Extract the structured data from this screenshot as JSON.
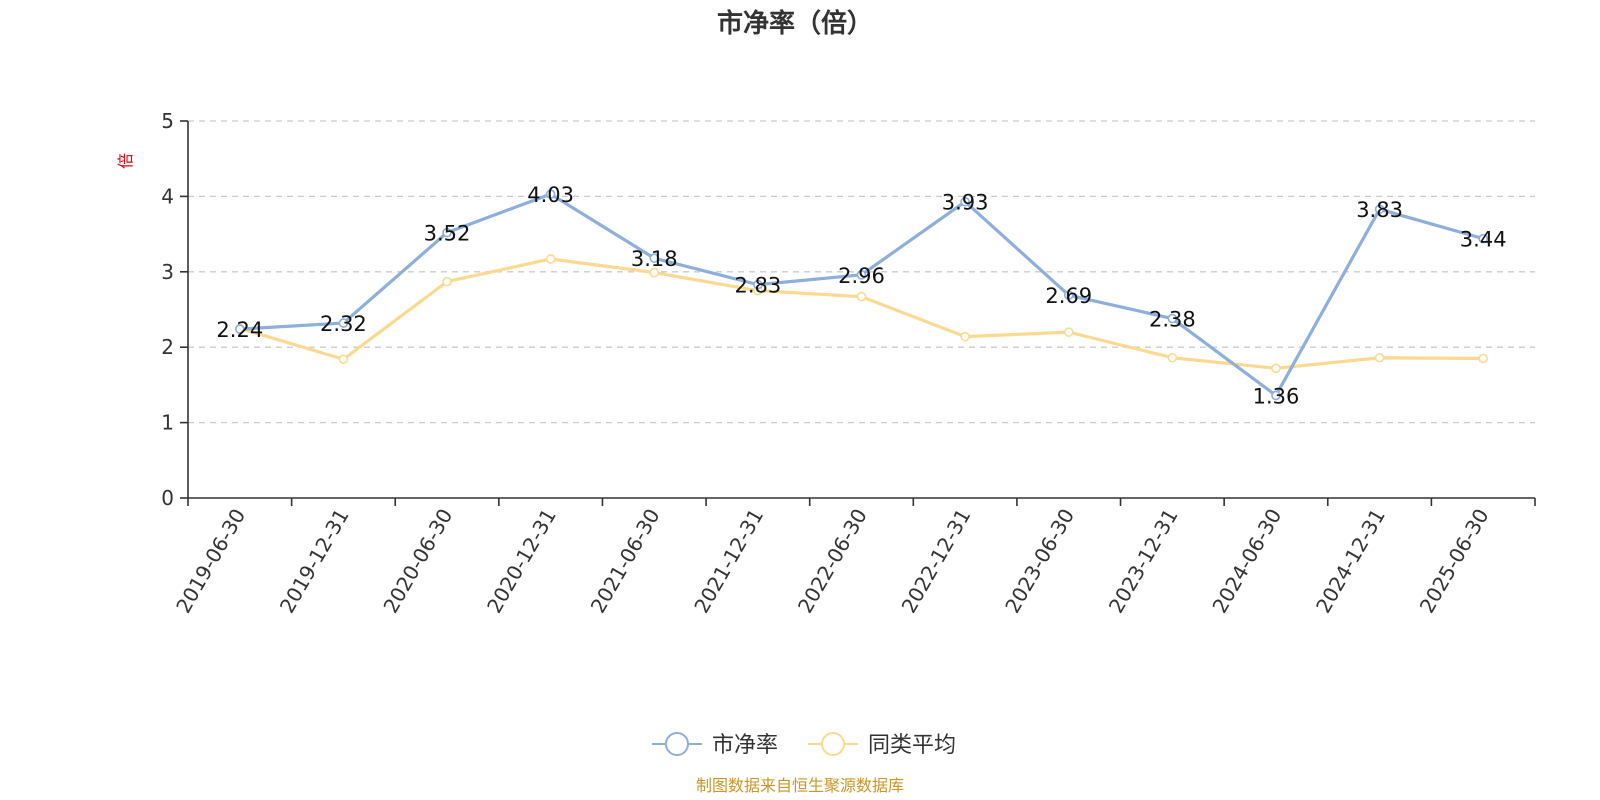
{
  "chart_data": {
    "type": "line",
    "title": "市净率（倍）",
    "ylabel": "倍",
    "ylim": [
      0,
      5
    ],
    "yticks": [
      0,
      1,
      2,
      3,
      4,
      5
    ],
    "categories": [
      "2019-06-30",
      "2019-12-31",
      "2020-06-30",
      "2020-12-31",
      "2021-06-30",
      "2021-12-31",
      "2022-06-30",
      "2022-12-31",
      "2023-06-30",
      "2023-12-31",
      "2024-06-30",
      "2024-12-31",
      "2025-06-30"
    ],
    "series": [
      {
        "name": "市净率",
        "color": "#8eaedb",
        "values": [
          2.24,
          2.32,
          3.52,
          4.03,
          3.18,
          2.83,
          2.96,
          3.93,
          2.69,
          2.38,
          1.36,
          3.83,
          3.44
        ],
        "show_labels": true
      },
      {
        "name": "同类平均",
        "color": "#fbd991",
        "values": [
          2.25,
          1.84,
          2.87,
          3.17,
          2.99,
          2.75,
          2.67,
          2.14,
          2.2,
          1.86,
          1.72,
          1.86,
          1.85
        ],
        "show_labels": false
      }
    ],
    "grid": true,
    "legend": "bottom-center"
  },
  "source_text": "制图数据来自恒生聚源数据库",
  "colors": {
    "ylabel": "#e0000f",
    "source": "#c9962a"
  }
}
